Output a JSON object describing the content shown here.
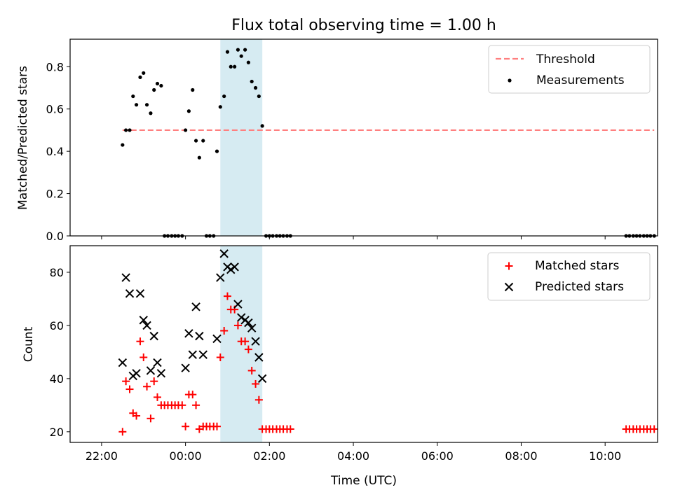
{
  "title": "Flux total observing time = 1.00 h",
  "colors": {
    "threshold": "#ff7f7f",
    "measurement": "#000000",
    "matched": "#ff0000",
    "predicted": "#000000",
    "band": "#add8e6"
  },
  "chart_data": [
    {
      "type": "scatter",
      "ylabel": "Matched/Predicted stars",
      "xlabel": "",
      "xlim": [
        -2.75,
        11.25
      ],
      "ylim": [
        0,
        0.93
      ],
      "yticks": [
        0.0,
        0.2,
        0.4,
        0.6,
        0.8
      ],
      "ytick_labels": [
        "0.0",
        "0.2",
        "0.4",
        "0.6",
        "0.8"
      ],
      "highlight_band": [
        0.83,
        1.83
      ],
      "legend": {
        "placement": "top-right",
        "entries": [
          "Threshold",
          "Measurements"
        ]
      },
      "threshold": {
        "name": "Threshold",
        "value": 0.5,
        "x_range": [
          -1.5,
          11.17
        ]
      },
      "series": [
        {
          "name": "Measurements",
          "x": [
            -1.5,
            -1.42,
            -1.33,
            -1.25,
            -1.17,
            -1.08,
            -1.0,
            -0.92,
            -0.83,
            -0.75,
            -0.67,
            -0.58,
            -0.5,
            -0.42,
            -0.33,
            -0.25,
            -0.17,
            -0.08,
            0.0,
            0.08,
            0.17,
            0.25,
            0.33,
            0.42,
            0.5,
            0.58,
            0.67,
            0.75,
            0.83,
            0.92,
            1.0,
            1.08,
            1.17,
            1.25,
            1.33,
            1.42,
            1.5,
            1.58,
            1.67,
            1.75,
            1.83,
            1.92,
            2.0,
            2.08,
            2.17,
            2.25,
            2.33,
            2.42,
            2.5,
            10.5,
            10.58,
            10.67,
            10.75,
            10.83,
            10.92,
            11.0,
            11.08,
            11.17
          ],
          "y": [
            0.43,
            0.5,
            0.5,
            0.66,
            0.62,
            0.75,
            0.77,
            0.62,
            0.58,
            0.69,
            0.72,
            0.71,
            0,
            0,
            0,
            0,
            0,
            0,
            0.5,
            0.59,
            0.69,
            0.45,
            0.37,
            0.45,
            0,
            0,
            0,
            0.4,
            0.61,
            0.66,
            0.87,
            0.8,
            0.8,
            0.88,
            0.85,
            0.88,
            0.82,
            0.73,
            0.7,
            0.66,
            0.52,
            0,
            0,
            0,
            0,
            0,
            0,
            0,
            0,
            0,
            0,
            0,
            0,
            0,
            0,
            0,
            0,
            0
          ]
        }
      ]
    },
    {
      "type": "scatter",
      "ylabel": "Count",
      "xlabel": "Time (UTC)",
      "xlim": [
        -2.75,
        11.25
      ],
      "ylim": [
        16,
        90
      ],
      "yticks": [
        20,
        40,
        60,
        80
      ],
      "ytick_labels": [
        "20",
        "40",
        "60",
        "80"
      ],
      "xticks": [
        -2,
        0,
        2,
        4,
        6,
        8,
        10
      ],
      "xtick_labels": [
        "22:00",
        "00:00",
        "02:00",
        "04:00",
        "06:00",
        "08:00",
        "10:00"
      ],
      "highlight_band": [
        0.83,
        1.83
      ],
      "legend": {
        "placement": "top-right",
        "entries": [
          "Matched stars",
          "Predicted stars"
        ]
      },
      "series": [
        {
          "name": "Matched stars",
          "marker": "plus",
          "x": [
            -1.5,
            -1.42,
            -1.33,
            -1.25,
            -1.17,
            -1.08,
            -1.0,
            -0.92,
            -0.83,
            -0.75,
            -0.67,
            -0.58,
            -0.5,
            -0.42,
            -0.33,
            -0.25,
            -0.17,
            -0.08,
            0.0,
            0.08,
            0.17,
            0.25,
            0.33,
            0.42,
            0.5,
            0.58,
            0.67,
            0.75,
            0.83,
            0.92,
            1.0,
            1.08,
            1.17,
            1.25,
            1.33,
            1.42,
            1.5,
            1.58,
            1.67,
            1.75,
            1.83,
            1.92,
            2.0,
            2.08,
            2.17,
            2.25,
            2.33,
            2.42,
            2.5,
            10.5,
            10.58,
            10.67,
            10.75,
            10.83,
            10.92,
            11.0,
            11.08,
            11.17
          ],
          "y": [
            20,
            39,
            36,
            27,
            26,
            54,
            48,
            37,
            25,
            39,
            33,
            30,
            30,
            30,
            30,
            30,
            30,
            30,
            22,
            34,
            34,
            30,
            21,
            22,
            22,
            22,
            22,
            22,
            48,
            58,
            71,
            66,
            66,
            60,
            54,
            54,
            51,
            43,
            38,
            32,
            21,
            21,
            21,
            21,
            21,
            21,
            21,
            21,
            21,
            21,
            21,
            21,
            21,
            21,
            21,
            21,
            21,
            21
          ]
        },
        {
          "name": "Predicted stars",
          "marker": "x",
          "x": [
            -1.5,
            -1.42,
            -1.33,
            -1.25,
            -1.17,
            -1.08,
            -1.0,
            -0.92,
            -0.83,
            -0.75,
            -0.67,
            -0.58,
            0.0,
            0.08,
            0.17,
            0.25,
            0.33,
            0.42,
            0.75,
            0.83,
            0.92,
            1.0,
            1.08,
            1.17,
            1.25,
            1.33,
            1.42,
            1.5,
            1.58,
            1.67,
            1.75,
            1.83
          ],
          "y": [
            46,
            78,
            72,
            41,
            42,
            72,
            62,
            60,
            43,
            56,
            46,
            42,
            44,
            57,
            49,
            67,
            56,
            49,
            55,
            78,
            87,
            82,
            81,
            82,
            68,
            63,
            62,
            61,
            59,
            54,
            48,
            40
          ]
        }
      ]
    }
  ]
}
